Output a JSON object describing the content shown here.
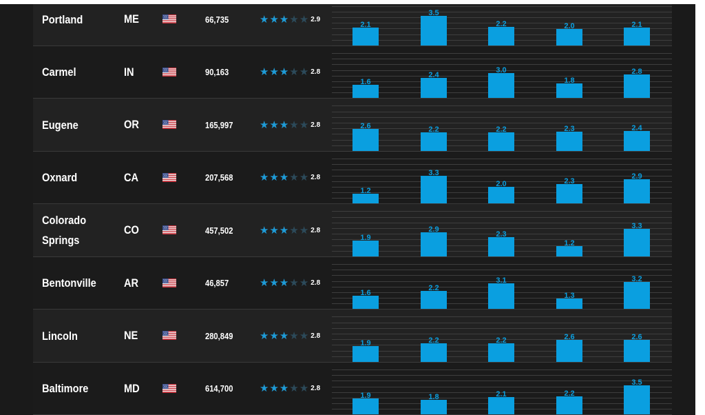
{
  "colors": {
    "panel_background": "#1a1a1a",
    "row_odd": "#222222",
    "row_even": "#1b1b1b",
    "accent_blue": "#0a9fe0",
    "star_on": "#1e9bd7",
    "star_off": "#2c4a5a"
  },
  "table": {
    "flag_icon": "us-flag-icon",
    "star_icon": "star-icon",
    "rows": [
      {
        "city": "Portland",
        "state": "ME",
        "population": "66,735",
        "rating": "2.9",
        "stars_filled": 3,
        "scores": [
          2.1,
          3.5,
          2.2,
          2.0,
          2.1
        ]
      },
      {
        "city": "Carmel",
        "state": "IN",
        "population": "90,163",
        "rating": "2.8",
        "stars_filled": 3,
        "scores": [
          1.6,
          2.4,
          3.0,
          1.8,
          2.8
        ]
      },
      {
        "city": "Eugene",
        "state": "OR",
        "population": "165,997",
        "rating": "2.8",
        "stars_filled": 3,
        "scores": [
          2.6,
          2.2,
          2.2,
          2.3,
          2.4
        ]
      },
      {
        "city": "Oxnard",
        "state": "CA",
        "population": "207,568",
        "rating": "2.8",
        "stars_filled": 3,
        "scores": [
          1.2,
          3.3,
          2.0,
          2.3,
          2.9
        ]
      },
      {
        "city": "Colorado Springs",
        "state": "CO",
        "population": "457,502",
        "rating": "2.8",
        "stars_filled": 3,
        "scores": [
          1.9,
          2.9,
          2.3,
          1.2,
          3.3
        ]
      },
      {
        "city": "Bentonville",
        "state": "AR",
        "population": "46,857",
        "rating": "2.8",
        "stars_filled": 3,
        "scores": [
          1.6,
          2.2,
          3.1,
          1.3,
          3.2
        ]
      },
      {
        "city": "Lincoln",
        "state": "NE",
        "population": "280,849",
        "rating": "2.8",
        "stars_filled": 3,
        "scores": [
          1.9,
          2.2,
          2.2,
          2.6,
          2.6
        ]
      },
      {
        "city": "Baltimore",
        "state": "MD",
        "population": "614,700",
        "rating": "2.8",
        "stars_filled": 3,
        "scores": [
          1.9,
          1.8,
          2.1,
          2.2,
          3.5
        ]
      }
    ]
  }
}
